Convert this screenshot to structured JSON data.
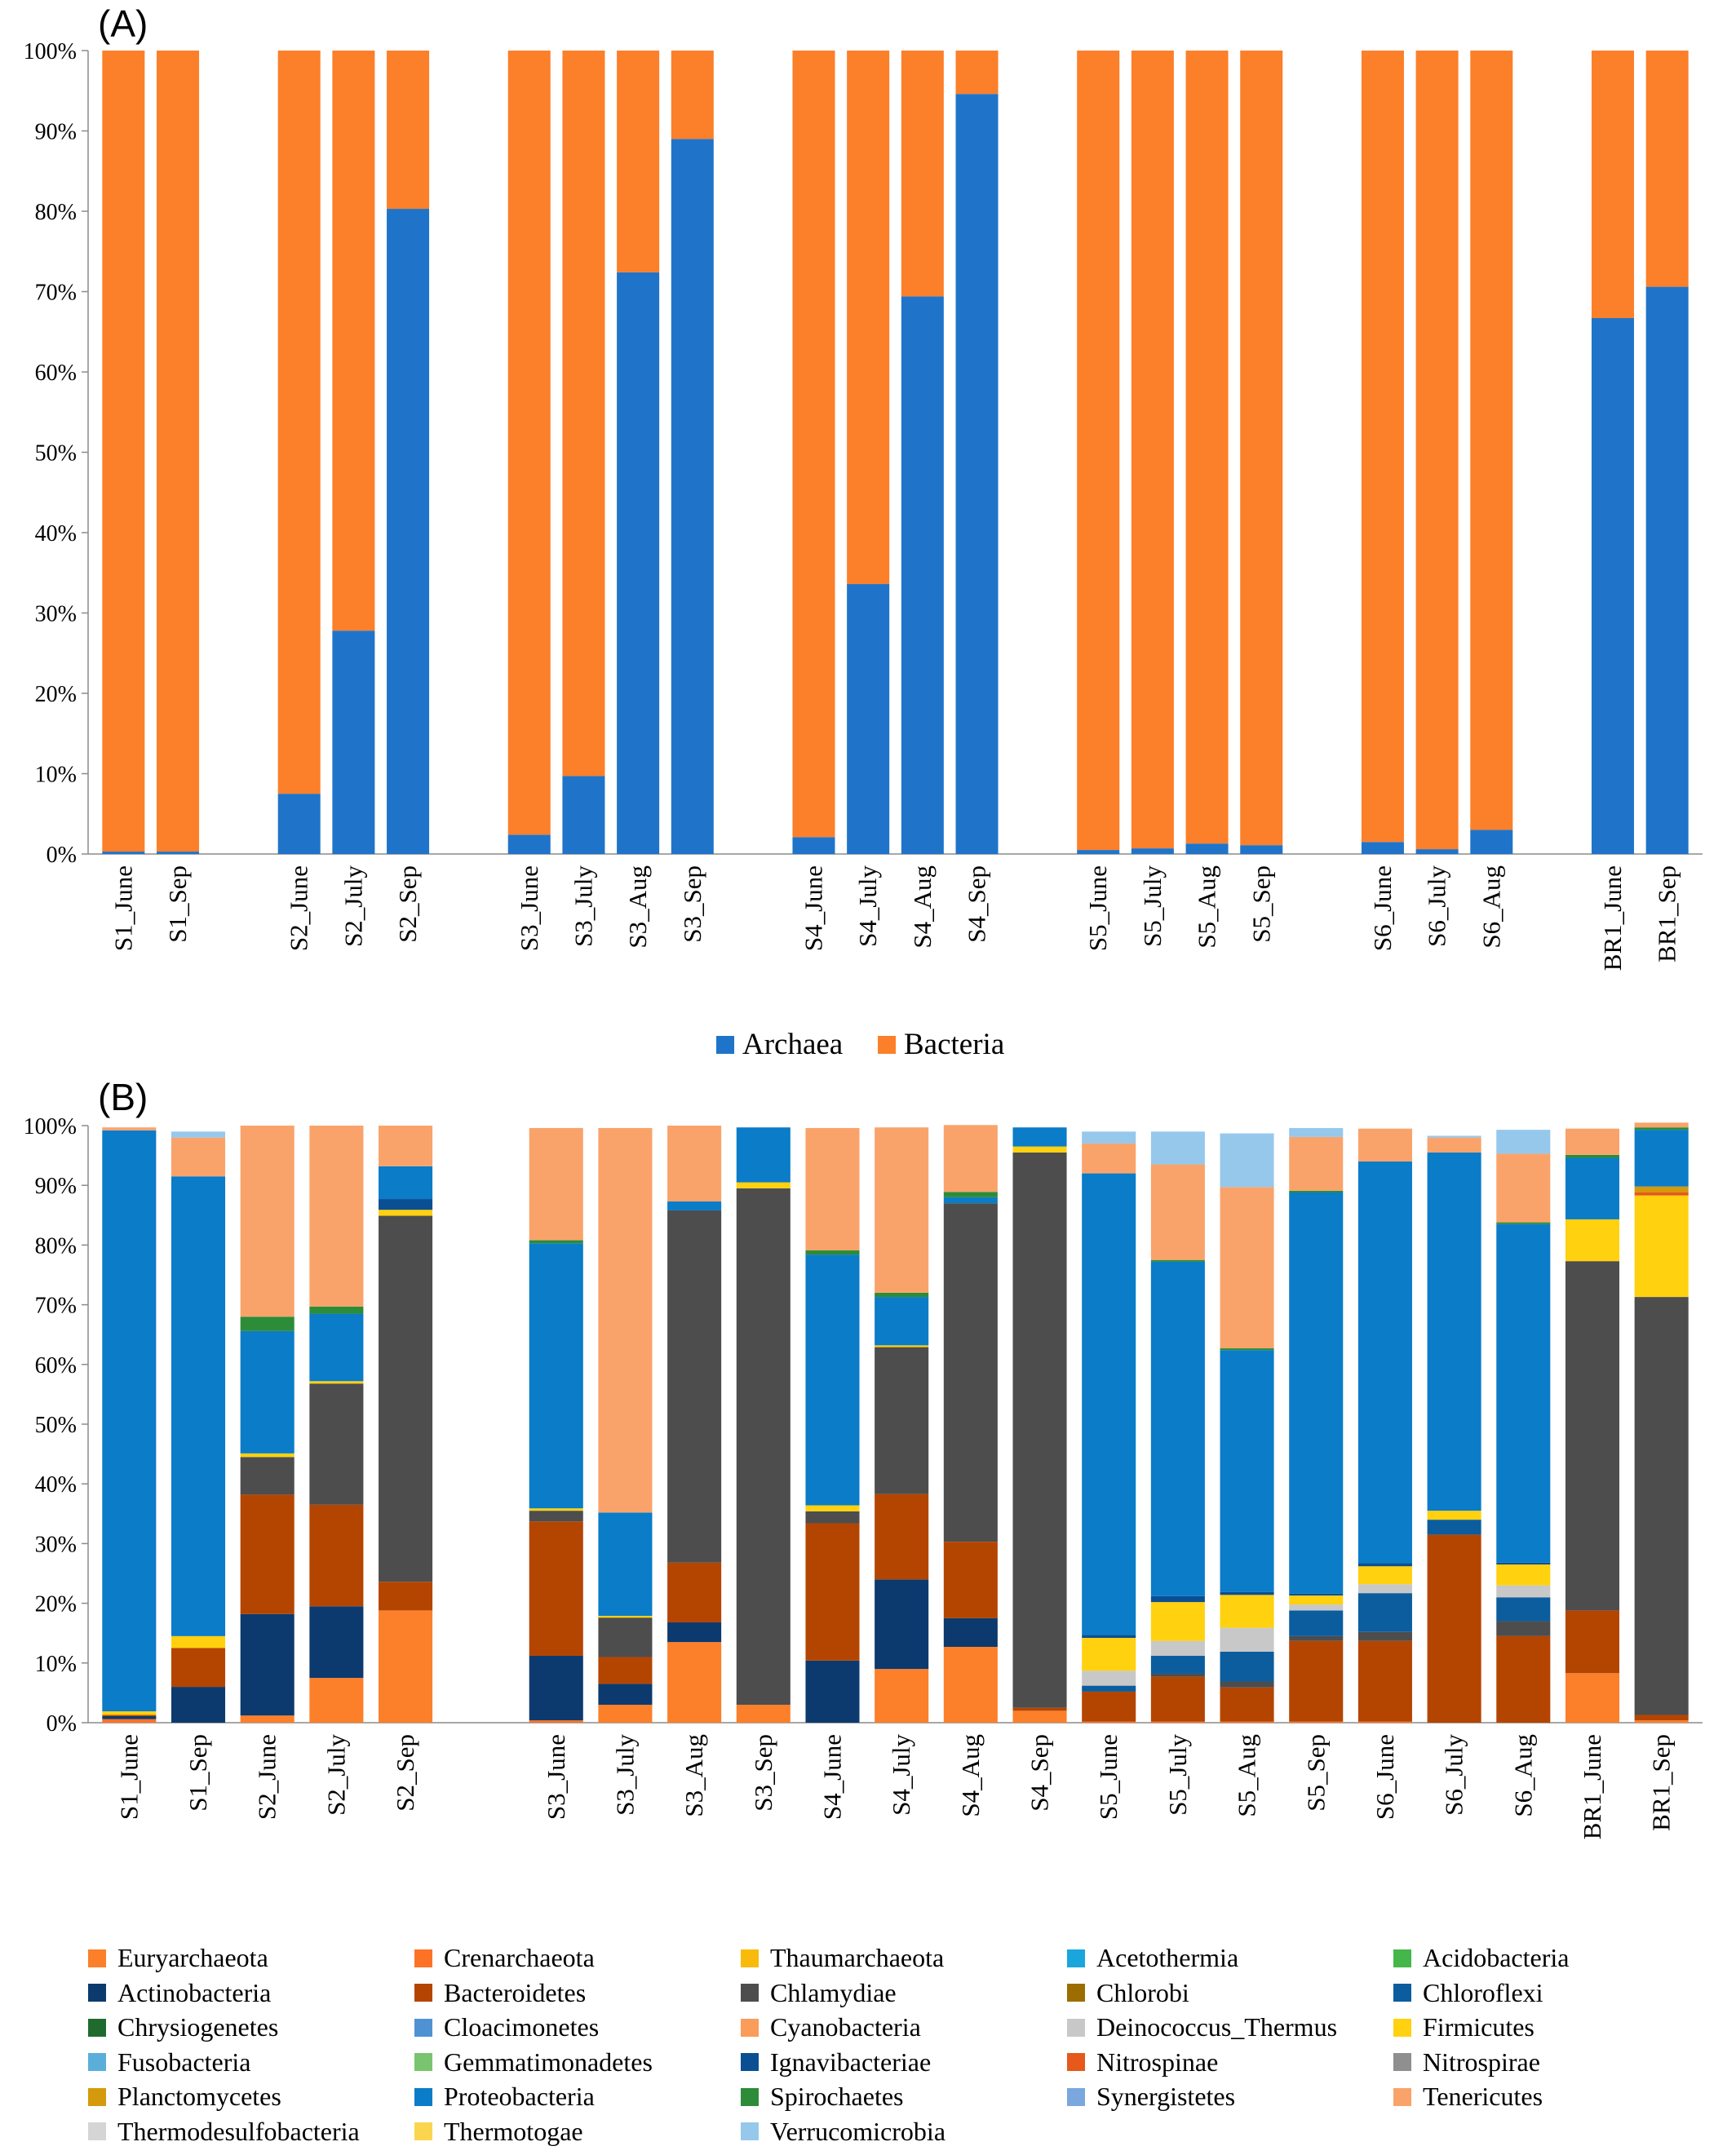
{
  "panel_a_label": "(A)",
  "panel_b_label": "(B)",
  "chart_data": [
    {
      "type": "bar",
      "stacked": true,
      "normalized": true,
      "panel": "(A)",
      "categories": [
        "S1_June",
        "S1_Sep",
        "S2_June",
        "S2_July",
        "S2_Sep",
        "S3_June",
        "S3_July",
        "S3_Aug",
        "S3_Sep",
        "S4_June",
        "S4_July",
        "S4_Aug",
        "S4_Sep",
        "S5_June",
        "S5_July",
        "S5_Aug",
        "S5_Sep",
        "S6_June",
        "S6_July",
        "S6_Aug",
        "BR1_June",
        "BR1_Sep"
      ],
      "groups": [
        2,
        3,
        4,
        4,
        4,
        3,
        2
      ],
      "ylim": [
        0,
        100
      ],
      "yticks": [
        "0%",
        "10%",
        "20%",
        "30%",
        "40%",
        "50%",
        "60%",
        "70%",
        "80%",
        "90%",
        "100%"
      ],
      "legend_position": "bottom",
      "series": [
        {
          "name": "Archaea",
          "color": "#1f74c9",
          "values": [
            0.3,
            0.3,
            7.5,
            27.8,
            80.3,
            2.4,
            9.7,
            72.4,
            89.0,
            2.1,
            33.6,
            69.4,
            94.6,
            0.5,
            0.7,
            1.3,
            1.1,
            1.5,
            0.6,
            3.0,
            66.7,
            70.6
          ]
        },
        {
          "name": "Bacteria",
          "color": "#fc7f2a",
          "values": [
            99.7,
            99.7,
            92.5,
            72.2,
            19.7,
            97.6,
            90.3,
            27.6,
            11.0,
            97.9,
            66.4,
            30.6,
            5.4,
            99.5,
            99.3,
            98.7,
            98.9,
            98.5,
            99.4,
            97.0,
            33.3,
            29.4
          ]
        }
      ]
    },
    {
      "type": "bar",
      "stacked": true,
      "normalized": true,
      "panel": "(B)",
      "categories": [
        "S1_June",
        "S1_Sep",
        "S2_June",
        "S2_July",
        "S2_Sep",
        "S3_June",
        "S3_July",
        "S3_Aug",
        "S3_Sep",
        "S4_June",
        "S4_July",
        "S4_Aug",
        "S4_Sep",
        "S5_June",
        "S5_July",
        "S5_Aug",
        "S5_Sep",
        "S6_June",
        "S6_July",
        "S6_Aug",
        "BR1_June",
        "BR1_Sep"
      ],
      "groups": [
        5,
        17
      ],
      "ylim": [
        0,
        100
      ],
      "yticks": [
        "0%",
        "10%",
        "20%",
        "30%",
        "40%",
        "50%",
        "60%",
        "70%",
        "80%",
        "90%",
        "100%"
      ],
      "legend_position": "bottom",
      "series": [
        {
          "name": "Euryarchaeota",
          "color": "#fc7f2a",
          "values": [
            0,
            0,
            1.2,
            7.5,
            18.8,
            0,
            3.0,
            13.5,
            3.0,
            0,
            9.0,
            12.7,
            2.0,
            0,
            0,
            0,
            0,
            0,
            0,
            0,
            8.3,
            0.4
          ]
        },
        {
          "name": "Crenarchaeota",
          "color": "#fe7226",
          "values": [
            0.6,
            0,
            0,
            0,
            0,
            0.4,
            0,
            0,
            0,
            0,
            0,
            0,
            0,
            0.2,
            0.2,
            0.2,
            0.2,
            0.2,
            0,
            0,
            0,
            0
          ]
        },
        {
          "name": "Thaumarchaeota",
          "color": "#f8bb0b",
          "values": [
            0,
            0,
            0,
            0,
            0,
            0,
            0,
            0,
            0,
            0,
            0,
            0,
            0,
            0,
            0,
            0,
            0,
            0,
            0,
            0,
            0,
            0
          ]
        },
        {
          "name": "Acetothermia",
          "color": "#1aa6dd",
          "values": [
            0,
            0,
            0,
            0,
            0,
            0,
            0,
            0,
            0,
            0,
            0,
            0,
            0,
            0,
            0,
            0,
            0,
            0,
            0,
            0,
            0,
            0
          ]
        },
        {
          "name": "Acidobacteria",
          "color": "#45b649",
          "values": [
            0,
            0,
            0,
            0,
            0,
            0,
            0,
            0,
            0,
            0,
            0,
            0,
            0,
            0,
            0,
            0,
            0,
            0,
            0,
            0,
            0,
            0
          ]
        },
        {
          "name": "Actinobacteria",
          "color": "#0c3a6e",
          "values": [
            0.5,
            6.0,
            17.0,
            12.0,
            0,
            10.8,
            3.5,
            3.3,
            0,
            10.4,
            15.0,
            4.8,
            0,
            0,
            0,
            0,
            0,
            0,
            0,
            0,
            0,
            0
          ]
        },
        {
          "name": "Bacteroidetes",
          "color": "#b44500",
          "values": [
            0.2,
            6.5,
            20.0,
            17.0,
            4.8,
            22.5,
            4.5,
            10.0,
            0,
            23.0,
            14.3,
            12.8,
            0.5,
            5.0,
            7.5,
            5.7,
            13.5,
            13.5,
            31.5,
            14.5,
            10.5,
            0.9
          ]
        },
        {
          "name": "Chlamydiae",
          "color": "#4d4d4d",
          "values": [
            0,
            0,
            6.3,
            20.3,
            61.3,
            1.8,
            6.6,
            59.0,
            86.5,
            2.0,
            24.6,
            56.7,
            93.0,
            0,
            0.5,
            1.0,
            0.8,
            1.5,
            0,
            2.5,
            58.5,
            70.0
          ]
        },
        {
          "name": "Chlorobi",
          "color": "#9c6d00",
          "values": [
            0,
            0,
            0,
            0,
            0,
            0,
            0,
            0,
            0,
            0,
            0,
            0,
            0,
            0,
            0,
            0,
            0,
            0,
            0,
            0,
            0,
            0
          ]
        },
        {
          "name": "Chloroflexi",
          "color": "#0c5d9e",
          "values": [
            0,
            0,
            0,
            0,
            0,
            0,
            0,
            0,
            0,
            0,
            0,
            0,
            0,
            1.0,
            3.0,
            5.0,
            4.3,
            6.5,
            2.5,
            4.0,
            0,
            0
          ]
        },
        {
          "name": "Chrysiogenetes",
          "color": "#1f6b2d",
          "values": [
            0,
            0,
            0,
            0,
            0,
            0,
            0,
            0,
            0,
            0,
            0,
            0,
            0,
            0,
            0,
            0,
            0,
            0,
            0,
            0,
            0,
            0
          ]
        },
        {
          "name": "Cloacimonetes",
          "color": "#4f92d4",
          "values": [
            0,
            0,
            0,
            0,
            0,
            0,
            0,
            0,
            0,
            0,
            0,
            0,
            0,
            0,
            0,
            0,
            0,
            0,
            0,
            0,
            0,
            0
          ]
        },
        {
          "name": "Cyanobacteria",
          "color": "#fa9c5a",
          "values": [
            0,
            0,
            0,
            0,
            0,
            0,
            0,
            0,
            0,
            0,
            0,
            0,
            0,
            0,
            0,
            0,
            0,
            0,
            0,
            0,
            0,
            0
          ]
        },
        {
          "name": "Deinococcus_Thermus",
          "color": "#c8c8c8",
          "values": [
            0,
            0,
            0,
            0,
            0,
            0,
            0,
            0,
            0,
            0,
            0,
            0,
            0,
            2.5,
            2.5,
            4.0,
            1.0,
            1.5,
            0,
            2.0,
            0,
            0
          ]
        },
        {
          "name": "Firmicutes",
          "color": "#ffd10f",
          "values": [
            0.6,
            2.0,
            0.6,
            0.4,
            1.0,
            0.4,
            0.3,
            0,
            1.0,
            1.0,
            0.3,
            0,
            1.0,
            5.5,
            6.5,
            5.5,
            1.5,
            3.0,
            1.5,
            3.5,
            7.0,
            17.0
          ]
        },
        {
          "name": "Fusobacteria",
          "color": "#5aaeda",
          "values": [
            0,
            0,
            0,
            0,
            0,
            0,
            0,
            0,
            0,
            0,
            0,
            0,
            0,
            0,
            0,
            0,
            0,
            0,
            0,
            0,
            0,
            0
          ]
        },
        {
          "name": "Gemmatimonadetes",
          "color": "#79c46f",
          "values": [
            0,
            0,
            0,
            0,
            0,
            0,
            0,
            0,
            0,
            0,
            0,
            0,
            0,
            0,
            0,
            0,
            0,
            0,
            0,
            0,
            0,
            0
          ]
        },
        {
          "name": "Ignavibacteriae",
          "color": "#0b4f93",
          "values": [
            0,
            0,
            0,
            0,
            1.8,
            0,
            0,
            0,
            0,
            0,
            0,
            0,
            0,
            0.5,
            1.0,
            0.5,
            0.3,
            0.5,
            0,
            0.3,
            0,
            0
          ]
        },
        {
          "name": "Nitrospinae",
          "color": "#e6581b",
          "values": [
            0,
            0,
            0,
            0,
            0,
            0,
            0,
            0,
            0,
            0,
            0,
            0,
            0,
            0,
            0,
            0,
            0,
            0,
            0,
            0,
            0,
            0.5
          ]
        },
        {
          "name": "Nitrospirae",
          "color": "#8f8f8f",
          "values": [
            0,
            0,
            0,
            0,
            0,
            0,
            0,
            0,
            0,
            0,
            0,
            0,
            0,
            0,
            0,
            0,
            0,
            0,
            0,
            0,
            0,
            0
          ]
        },
        {
          "name": "Planctomycetes",
          "color": "#d49a0c",
          "values": [
            0,
            0,
            0,
            0,
            0,
            0,
            0,
            0,
            0,
            0,
            0,
            0,
            0,
            0,
            0,
            0,
            0,
            0,
            0,
            0,
            0,
            1.0
          ]
        },
        {
          "name": "Proteobacteria",
          "color": "#0a7cc8",
          "values": [
            97.3,
            77.0,
            20.5,
            11.3,
            5.5,
            44.4,
            17.3,
            1.5,
            9.2,
            42.0,
            8.1,
            1.0,
            3.2,
            77.3,
            56.0,
            40.5,
            67.2,
            67.3,
            60.0,
            56.7,
            10.3,
            9.5
          ]
        },
        {
          "name": "Spirochaetes",
          "color": "#2c8c38",
          "values": [
            0,
            0,
            2.4,
            1.2,
            0,
            0.5,
            0,
            0,
            0,
            0.7,
            0.7,
            0.9,
            0,
            0,
            0.3,
            0.3,
            0.3,
            0,
            0,
            0.3,
            0.5,
            0.4
          ]
        },
        {
          "name": "Synergistetes",
          "color": "#7aa7de",
          "values": [
            0,
            0,
            0,
            0,
            0,
            0,
            0,
            0,
            0,
            0,
            0,
            0,
            0,
            0,
            0,
            0,
            0,
            0,
            0,
            0,
            0,
            0
          ]
        },
        {
          "name": "Tenericutes",
          "color": "#f9a36b",
          "values": [
            0.5,
            6.5,
            32.0,
            30.3,
            6.8,
            18.8,
            64.4,
            12.7,
            0,
            20.5,
            27.7,
            11.2,
            0,
            5.0,
            16.0,
            27.0,
            9.0,
            5.5,
            2.5,
            11.5,
            4.4,
            0.8
          ]
        },
        {
          "name": "Thermodesulfobacteria",
          "color": "#d5d5d5",
          "values": [
            0,
            0,
            0,
            0,
            0,
            0,
            0,
            0,
            0,
            0,
            0,
            0,
            0,
            0,
            0,
            0,
            0,
            0,
            0,
            0,
            0,
            0
          ]
        },
        {
          "name": "Thermotogae",
          "color": "#fbd54f",
          "values": [
            0,
            0,
            0,
            0,
            0,
            0,
            0,
            0,
            0,
            0,
            0,
            0,
            0,
            0,
            0,
            0,
            0,
            0,
            0,
            0,
            0,
            0
          ]
        },
        {
          "name": "Verrucomicrobia",
          "color": "#96c8ec",
          "values": [
            0,
            1.0,
            0,
            0,
            0,
            0,
            0,
            0,
            0,
            0,
            0,
            0,
            0,
            2.0,
            5.5,
            9.0,
            1.5,
            0,
            0.3,
            4.0,
            0,
            0
          ]
        }
      ]
    }
  ]
}
